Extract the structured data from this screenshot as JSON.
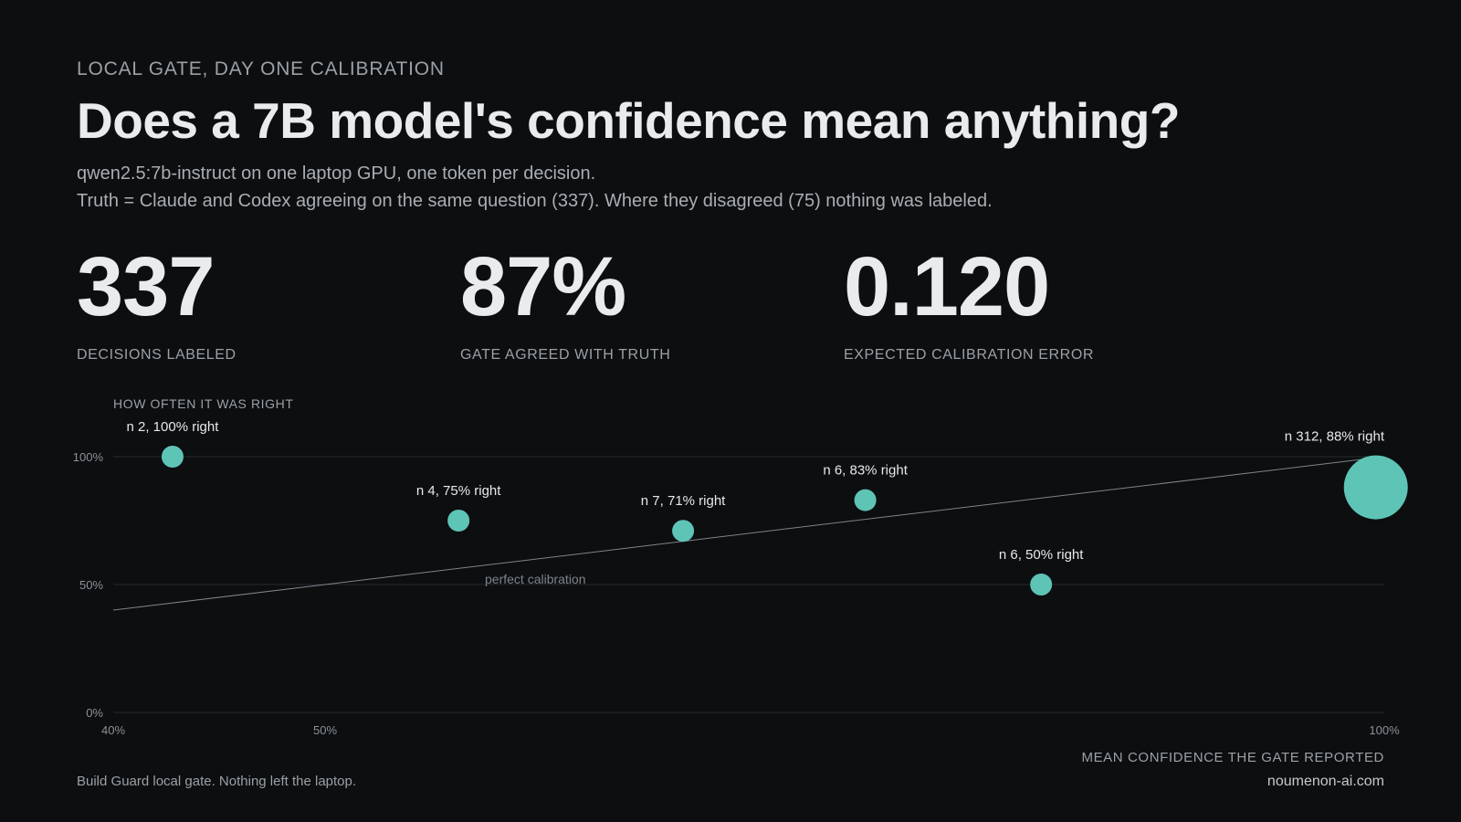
{
  "header": {
    "eyebrow": "LOCAL GATE, DAY ONE CALIBRATION",
    "title": "Does a 7B model's confidence mean anything?",
    "subtitle_line1": "qwen2.5:7b-instruct on one laptop GPU, one token per decision.",
    "subtitle_line2": "Truth = Claude and Codex agreeing on the same question (337). Where they disagreed (75) nothing was labeled."
  },
  "stats": [
    {
      "value": "337",
      "label": "DECISIONS LABELED"
    },
    {
      "value": "87%",
      "label": "GATE AGREED WITH TRUTH"
    },
    {
      "value": "0.120",
      "label": "EXPECTED CALIBRATION ERROR"
    }
  ],
  "chart_data": {
    "type": "scatter",
    "ylabel": "HOW OFTEN IT WAS RIGHT",
    "xlabel": "MEAN CONFIDENCE THE GATE REPORTED",
    "xlim": [
      40,
      100
    ],
    "ylim": [
      0,
      100
    ],
    "x_ticks": [
      {
        "value": 40,
        "label": "40%"
      },
      {
        "value": 50,
        "label": "50%"
      },
      {
        "value": 100,
        "label": "100%"
      }
    ],
    "y_ticks": [
      {
        "value": 0,
        "label": "0%"
      },
      {
        "value": 50,
        "label": "50%"
      },
      {
        "value": 100,
        "label": "100%"
      }
    ],
    "reference_line": {
      "label": "perfect calibration",
      "from": [
        40,
        40
      ],
      "to": [
        100,
        100
      ]
    },
    "points": [
      {
        "x": 42.8,
        "y": 100,
        "n": 2,
        "label": "n 2, 100% right"
      },
      {
        "x": 56.3,
        "y": 75,
        "n": 4,
        "label": "n 4, 75% right"
      },
      {
        "x": 66.9,
        "y": 71,
        "n": 7,
        "label": "n 7, 71% right"
      },
      {
        "x": 75.5,
        "y": 83,
        "n": 6,
        "label": "n 6, 83% right"
      },
      {
        "x": 83.8,
        "y": 50,
        "n": 6,
        "label": "n 6, 50% right"
      },
      {
        "x": 99.6,
        "y": 88,
        "n": 312,
        "label": "n 312, 88% right"
      }
    ],
    "point_color": "#5ec4b6",
    "grid": true
  },
  "footer": {
    "left": "Build Guard local gate. Nothing left the laptop.",
    "right": "noumenon-ai.com"
  }
}
